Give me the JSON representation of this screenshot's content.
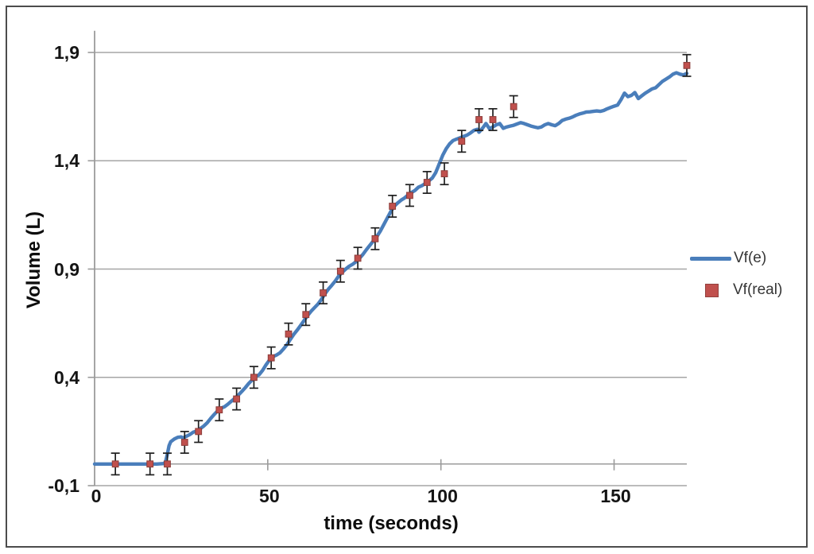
{
  "figure": {
    "border_color": "#4c4c4c",
    "background": "#ffffff",
    "grid_color": "#a6a6a6",
    "axis_color": "#9b9b9b",
    "error_bar_color": "#1f1f1f",
    "line_color": "#4a7ebb",
    "marker_color": "#c0504d",
    "marker_edge_color": "#8b3d3a"
  },
  "chart_data": {
    "type": "line",
    "title": "",
    "xlabel": "time (seconds)",
    "ylabel": "Volume (L)",
    "xlim": [
      0,
      171
    ],
    "ylim": [
      -0.1,
      2.0
    ],
    "grid": "horizontal",
    "legend_position": "right",
    "x_ticks": [
      {
        "value": 0,
        "label": "0"
      },
      {
        "value": 50,
        "label": "50"
      },
      {
        "value": 100,
        "label": "100"
      },
      {
        "value": 150,
        "label": "150"
      }
    ],
    "y_ticks": [
      {
        "value": -0.1,
        "label": "-0,1"
      },
      {
        "value": 0.4,
        "label": "0,4"
      },
      {
        "value": 0.9,
        "label": "0,9"
      },
      {
        "value": 1.4,
        "label": "1,4"
      },
      {
        "value": 1.9,
        "label": "1,9"
      }
    ],
    "series": [
      {
        "name": "Vf(e)",
        "type": "line",
        "color": "#4a7ebb",
        "points": [
          [
            0,
            0
          ],
          [
            3,
            0
          ],
          [
            6,
            0
          ],
          [
            9,
            0
          ],
          [
            12,
            0
          ],
          [
            15,
            0
          ],
          [
            18,
            0
          ],
          [
            20,
            0.002
          ],
          [
            20.5,
            0.01
          ],
          [
            21,
            0.045
          ],
          [
            21.5,
            0.085
          ],
          [
            22,
            0.103
          ],
          [
            23,
            0.115
          ],
          [
            24,
            0.123
          ],
          [
            25,
            0.125
          ],
          [
            25.5,
            0.12
          ],
          [
            26.5,
            0.128
          ],
          [
            27.5,
            0.136
          ],
          [
            28.5,
            0.147
          ],
          [
            29.5,
            0.152
          ],
          [
            30.5,
            0.163
          ],
          [
            31.5,
            0.175
          ],
          [
            32.5,
            0.19
          ],
          [
            33.5,
            0.21
          ],
          [
            34.5,
            0.228
          ],
          [
            35.5,
            0.245
          ],
          [
            36.5,
            0.258
          ],
          [
            37.5,
            0.264
          ],
          [
            38.5,
            0.276
          ],
          [
            39.5,
            0.29
          ],
          [
            40.5,
            0.303
          ],
          [
            41.5,
            0.318
          ],
          [
            42.5,
            0.335
          ],
          [
            43.5,
            0.352
          ],
          [
            44.5,
            0.372
          ],
          [
            45.5,
            0.388
          ],
          [
            46.5,
            0.403
          ],
          [
            47.5,
            0.412
          ],
          [
            48.5,
            0.432
          ],
          [
            49.5,
            0.458
          ],
          [
            50.5,
            0.48
          ],
          [
            51.5,
            0.496
          ],
          [
            52.5,
            0.503
          ],
          [
            53.5,
            0.513
          ],
          [
            54.5,
            0.53
          ],
          [
            55.5,
            0.55
          ],
          [
            56.5,
            0.575
          ],
          [
            57.5,
            0.598
          ],
          [
            58.5,
            0.618
          ],
          [
            59.5,
            0.64
          ],
          [
            60.5,
            0.663
          ],
          [
            61.5,
            0.685
          ],
          [
            62.5,
            0.705
          ],
          [
            63.5,
            0.722
          ],
          [
            64.5,
            0.738
          ],
          [
            65.5,
            0.76
          ],
          [
            66.5,
            0.785
          ],
          [
            67.5,
            0.807
          ],
          [
            68.5,
            0.825
          ],
          [
            69.5,
            0.845
          ],
          [
            70.5,
            0.868
          ],
          [
            71.5,
            0.885
          ],
          [
            72.5,
            0.9
          ],
          [
            73.5,
            0.913
          ],
          [
            74.5,
            0.922
          ],
          [
            75.5,
            0.934
          ],
          [
            76.5,
            0.95
          ],
          [
            77.5,
            0.968
          ],
          [
            78.5,
            0.99
          ],
          [
            79.5,
            1.01
          ],
          [
            80.5,
            1.03
          ],
          [
            81.5,
            1.05
          ],
          [
            82.5,
            1.075
          ],
          [
            83.5,
            1.105
          ],
          [
            84.5,
            1.135
          ],
          [
            85.5,
            1.165
          ],
          [
            86.5,
            1.19
          ],
          [
            87.5,
            1.205
          ],
          [
            88.5,
            1.218
          ],
          [
            89.5,
            1.228
          ],
          [
            90.5,
            1.242
          ],
          [
            91.5,
            1.253
          ],
          [
            92.5,
            1.263
          ],
          [
            93.5,
            1.278
          ],
          [
            94.5,
            1.285
          ],
          [
            95.5,
            1.295
          ],
          [
            96.5,
            1.307
          ],
          [
            97.5,
            1.32
          ],
          [
            98.5,
            1.345
          ],
          [
            99.5,
            1.385
          ],
          [
            100.5,
            1.425
          ],
          [
            101.5,
            1.455
          ],
          [
            102.5,
            1.478
          ],
          [
            103.5,
            1.493
          ],
          [
            104.5,
            1.5
          ],
          [
            105.5,
            1.506
          ],
          [
            106.5,
            1.512
          ],
          [
            107.5,
            1.518
          ],
          [
            108.5,
            1.528
          ],
          [
            109.5,
            1.54
          ],
          [
            110.5,
            1.545
          ],
          [
            111,
            1.532
          ],
          [
            112,
            1.55
          ],
          [
            113,
            1.572
          ],
          [
            114,
            1.548
          ],
          [
            115,
            1.556
          ],
          [
            116,
            1.566
          ],
          [
            117,
            1.572
          ],
          [
            118,
            1.55
          ],
          [
            119,
            1.556
          ],
          [
            120,
            1.56
          ],
          [
            121,
            1.564
          ],
          [
            122,
            1.57
          ],
          [
            123,
            1.576
          ],
          [
            124,
            1.572
          ],
          [
            125,
            1.566
          ],
          [
            126,
            1.56
          ],
          [
            127,
            1.556
          ],
          [
            128,
            1.552
          ],
          [
            129,
            1.556
          ],
          [
            130,
            1.566
          ],
          [
            131,
            1.572
          ],
          [
            132,
            1.566
          ],
          [
            133,
            1.562
          ],
          [
            134,
            1.572
          ],
          [
            135,
            1.586
          ],
          [
            136,
            1.592
          ],
          [
            137,
            1.596
          ],
          [
            138,
            1.602
          ],
          [
            139,
            1.61
          ],
          [
            140,
            1.616
          ],
          [
            141,
            1.62
          ],
          [
            142,
            1.625
          ],
          [
            143,
            1.626
          ],
          [
            144,
            1.628
          ],
          [
            145,
            1.63
          ],
          [
            146,
            1.628
          ],
          [
            147,
            1.632
          ],
          [
            148,
            1.64
          ],
          [
            149,
            1.646
          ],
          [
            150,
            1.652
          ],
          [
            151,
            1.657
          ],
          [
            152,
            1.682
          ],
          [
            153,
            1.712
          ],
          [
            154,
            1.696
          ],
          [
            155,
            1.702
          ],
          [
            156,
            1.715
          ],
          [
            157,
            1.687
          ],
          [
            158,
            1.7
          ],
          [
            159,
            1.712
          ],
          [
            160,
            1.722
          ],
          [
            161,
            1.732
          ],
          [
            162,
            1.737
          ],
          [
            163,
            1.752
          ],
          [
            164,
            1.767
          ],
          [
            165,
            1.777
          ],
          [
            166,
            1.787
          ],
          [
            167,
            1.8
          ],
          [
            168,
            1.806
          ],
          [
            169,
            1.8
          ],
          [
            170,
            1.796
          ],
          [
            171,
            1.803
          ]
        ]
      },
      {
        "name": "Vf(real)",
        "type": "scatter",
        "color": "#c0504d",
        "error": 0.05,
        "points": [
          [
            6,
            0.0
          ],
          [
            16,
            0.0
          ],
          [
            21,
            0.0
          ],
          [
            26,
            0.1
          ],
          [
            30,
            0.15
          ],
          [
            36,
            0.25
          ],
          [
            41,
            0.3
          ],
          [
            46,
            0.4
          ],
          [
            51,
            0.49
          ],
          [
            56,
            0.6
          ],
          [
            61,
            0.69
          ],
          [
            66,
            0.79
          ],
          [
            71,
            0.89
          ],
          [
            76,
            0.95
          ],
          [
            81,
            1.04
          ],
          [
            86,
            1.19
          ],
          [
            91,
            1.24
          ],
          [
            96,
            1.3
          ],
          [
            101,
            1.34
          ],
          [
            106,
            1.49
          ],
          [
            111,
            1.59
          ],
          [
            115,
            1.59
          ],
          [
            121,
            1.65
          ],
          [
            171,
            1.84
          ]
        ]
      }
    ]
  }
}
